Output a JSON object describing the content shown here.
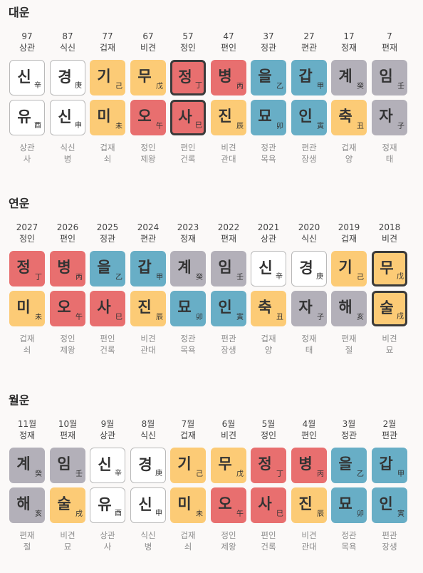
{
  "colors": {
    "yellow": "#fccb76",
    "red": "#e86f6f",
    "blue": "#68aec6",
    "gray": "#b3b0b9",
    "white": "#ffffff"
  },
  "sections": [
    {
      "title": "대운",
      "items": [
        {
          "h1": "97",
          "h2": "상관",
          "top": {
            "c": "신",
            "s": "辛",
            "color": "white"
          },
          "bottom": {
            "c": "유",
            "s": "酉",
            "color": "white"
          },
          "f1": "상관",
          "f2": "사"
        },
        {
          "h1": "87",
          "h2": "식신",
          "top": {
            "c": "경",
            "s": "庚",
            "color": "white"
          },
          "bottom": {
            "c": "신",
            "s": "申",
            "color": "white"
          },
          "f1": "식신",
          "f2": "병"
        },
        {
          "h1": "77",
          "h2": "겁재",
          "top": {
            "c": "기",
            "s": "己",
            "color": "yellow"
          },
          "bottom": {
            "c": "미",
            "s": "未",
            "color": "yellow"
          },
          "f1": "겁재",
          "f2": "쇠"
        },
        {
          "h1": "67",
          "h2": "비견",
          "top": {
            "c": "무",
            "s": "戊",
            "color": "yellow"
          },
          "bottom": {
            "c": "오",
            "s": "午",
            "color": "red"
          },
          "f1": "정인",
          "f2": "제왕"
        },
        {
          "h1": "57",
          "h2": "정인",
          "top": {
            "c": "정",
            "s": "丁",
            "color": "red",
            "hl": true
          },
          "bottom": {
            "c": "사",
            "s": "巳",
            "color": "red",
            "hl": true
          },
          "f1": "편인",
          "f2": "건록"
        },
        {
          "h1": "47",
          "h2": "편인",
          "top": {
            "c": "병",
            "s": "丙",
            "color": "red"
          },
          "bottom": {
            "c": "진",
            "s": "辰",
            "color": "yellow"
          },
          "f1": "비견",
          "f2": "관대"
        },
        {
          "h1": "37",
          "h2": "정관",
          "top": {
            "c": "을",
            "s": "乙",
            "color": "blue"
          },
          "bottom": {
            "c": "묘",
            "s": "卯",
            "color": "blue"
          },
          "f1": "정관",
          "f2": "목욕"
        },
        {
          "h1": "27",
          "h2": "편관",
          "top": {
            "c": "갑",
            "s": "甲",
            "color": "blue"
          },
          "bottom": {
            "c": "인",
            "s": "寅",
            "color": "blue"
          },
          "f1": "편관",
          "f2": "장생"
        },
        {
          "h1": "17",
          "h2": "정재",
          "top": {
            "c": "계",
            "s": "癸",
            "color": "gray"
          },
          "bottom": {
            "c": "축",
            "s": "丑",
            "color": "yellow"
          },
          "f1": "겁재",
          "f2": "양"
        },
        {
          "h1": "7",
          "h2": "편재",
          "top": {
            "c": "임",
            "s": "壬",
            "color": "gray"
          },
          "bottom": {
            "c": "자",
            "s": "子",
            "color": "gray"
          },
          "f1": "정재",
          "f2": "태"
        }
      ]
    },
    {
      "title": "연운",
      "items": [
        {
          "h1": "2027",
          "h2": "정인",
          "top": {
            "c": "정",
            "s": "丁",
            "color": "red"
          },
          "bottom": {
            "c": "미",
            "s": "未",
            "color": "yellow"
          },
          "f1": "겁재",
          "f2": "쇠"
        },
        {
          "h1": "2026",
          "h2": "편인",
          "top": {
            "c": "병",
            "s": "丙",
            "color": "red"
          },
          "bottom": {
            "c": "오",
            "s": "午",
            "color": "red"
          },
          "f1": "정인",
          "f2": "제왕"
        },
        {
          "h1": "2025",
          "h2": "정관",
          "top": {
            "c": "을",
            "s": "乙",
            "color": "blue"
          },
          "bottom": {
            "c": "사",
            "s": "巳",
            "color": "red"
          },
          "f1": "편인",
          "f2": "건록"
        },
        {
          "h1": "2024",
          "h2": "편관",
          "top": {
            "c": "갑",
            "s": "甲",
            "color": "blue"
          },
          "bottom": {
            "c": "진",
            "s": "辰",
            "color": "yellow"
          },
          "f1": "비견",
          "f2": "관대"
        },
        {
          "h1": "2023",
          "h2": "정재",
          "top": {
            "c": "계",
            "s": "癸",
            "color": "gray"
          },
          "bottom": {
            "c": "묘",
            "s": "卯",
            "color": "blue"
          },
          "f1": "정관",
          "f2": "목욕"
        },
        {
          "h1": "2022",
          "h2": "편재",
          "top": {
            "c": "임",
            "s": "壬",
            "color": "gray"
          },
          "bottom": {
            "c": "인",
            "s": "寅",
            "color": "blue"
          },
          "f1": "편관",
          "f2": "장생"
        },
        {
          "h1": "2021",
          "h2": "상관",
          "top": {
            "c": "신",
            "s": "辛",
            "color": "white"
          },
          "bottom": {
            "c": "축",
            "s": "丑",
            "color": "yellow"
          },
          "f1": "겁재",
          "f2": "양"
        },
        {
          "h1": "2020",
          "h2": "식신",
          "top": {
            "c": "경",
            "s": "庚",
            "color": "white"
          },
          "bottom": {
            "c": "자",
            "s": "子",
            "color": "gray"
          },
          "f1": "정재",
          "f2": "태"
        },
        {
          "h1": "2019",
          "h2": "겁재",
          "top": {
            "c": "기",
            "s": "己",
            "color": "yellow"
          },
          "bottom": {
            "c": "해",
            "s": "亥",
            "color": "gray"
          },
          "f1": "편재",
          "f2": "절"
        },
        {
          "h1": "2018",
          "h2": "비견",
          "top": {
            "c": "무",
            "s": "戊",
            "color": "yellow",
            "hl": true
          },
          "bottom": {
            "c": "술",
            "s": "戌",
            "color": "yellow",
            "hl": true
          },
          "f1": "비견",
          "f2": "묘"
        }
      ]
    },
    {
      "title": "월운",
      "items": [
        {
          "h1": "11월",
          "h2": "정재",
          "top": {
            "c": "계",
            "s": "癸",
            "color": "gray"
          },
          "bottom": {
            "c": "해",
            "s": "亥",
            "color": "gray"
          },
          "f1": "편재",
          "f2": "절"
        },
        {
          "h1": "10월",
          "h2": "편재",
          "top": {
            "c": "임",
            "s": "壬",
            "color": "gray"
          },
          "bottom": {
            "c": "술",
            "s": "戌",
            "color": "yellow"
          },
          "f1": "비견",
          "f2": "묘"
        },
        {
          "h1": "9월",
          "h2": "상관",
          "top": {
            "c": "신",
            "s": "辛",
            "color": "white"
          },
          "bottom": {
            "c": "유",
            "s": "酉",
            "color": "white"
          },
          "f1": "상관",
          "f2": "사"
        },
        {
          "h1": "8월",
          "h2": "식신",
          "top": {
            "c": "경",
            "s": "庚",
            "color": "white"
          },
          "bottom": {
            "c": "신",
            "s": "申",
            "color": "white"
          },
          "f1": "식신",
          "f2": "병"
        },
        {
          "h1": "7월",
          "h2": "겁재",
          "top": {
            "c": "기",
            "s": "己",
            "color": "yellow"
          },
          "bottom": {
            "c": "미",
            "s": "未",
            "color": "yellow"
          },
          "f1": "겁재",
          "f2": "쇠"
        },
        {
          "h1": "6월",
          "h2": "비견",
          "top": {
            "c": "무",
            "s": "戊",
            "color": "yellow"
          },
          "bottom": {
            "c": "오",
            "s": "午",
            "color": "red"
          },
          "f1": "정인",
          "f2": "제왕"
        },
        {
          "h1": "5월",
          "h2": "정인",
          "top": {
            "c": "정",
            "s": "丁",
            "color": "red"
          },
          "bottom": {
            "c": "사",
            "s": "巳",
            "color": "red"
          },
          "f1": "편인",
          "f2": "건록"
        },
        {
          "h1": "4월",
          "h2": "편인",
          "top": {
            "c": "병",
            "s": "丙",
            "color": "red"
          },
          "bottom": {
            "c": "진",
            "s": "辰",
            "color": "yellow"
          },
          "f1": "비견",
          "f2": "관대"
        },
        {
          "h1": "3월",
          "h2": "정관",
          "top": {
            "c": "을",
            "s": "乙",
            "color": "blue"
          },
          "bottom": {
            "c": "묘",
            "s": "卯",
            "color": "blue"
          },
          "f1": "정관",
          "f2": "목욕"
        },
        {
          "h1": "2월",
          "h2": "편관",
          "top": {
            "c": "갑",
            "s": "甲",
            "color": "blue"
          },
          "bottom": {
            "c": "인",
            "s": "寅",
            "color": "blue"
          },
          "f1": "편관",
          "f2": "장생"
        }
      ]
    }
  ]
}
